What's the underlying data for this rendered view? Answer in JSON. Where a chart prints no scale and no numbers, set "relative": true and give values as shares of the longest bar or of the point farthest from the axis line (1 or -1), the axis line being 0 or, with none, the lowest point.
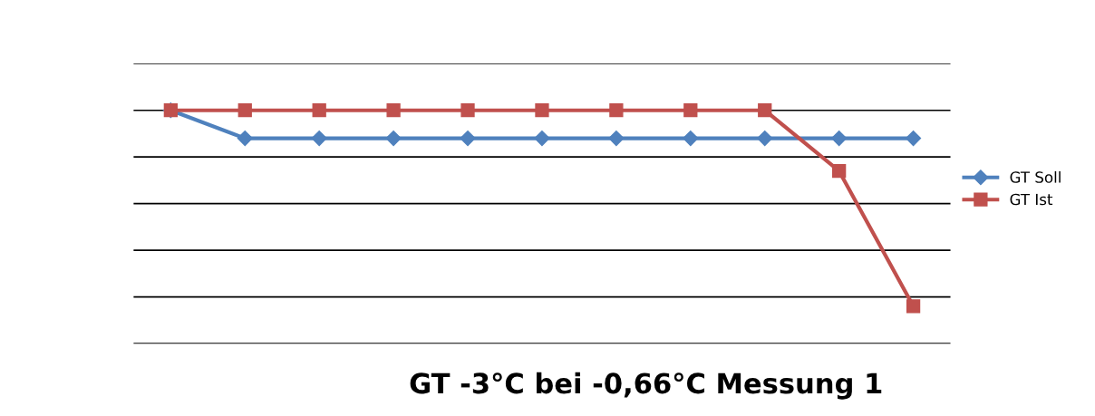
{
  "chart_data": {
    "type": "line",
    "title": "GT -3°C bei -0,66°C Messung 1",
    "relative": true,
    "categories": [
      null,
      null,
      null,
      null,
      null,
      null,
      null,
      null,
      null,
      null,
      null
    ],
    "series": [
      {
        "name": "GT Soll",
        "color": "#4f81bd",
        "marker": "diamond",
        "values": [
          1.0,
          0.88,
          0.88,
          0.88,
          0.88,
          0.88,
          0.88,
          0.88,
          0.88,
          0.88,
          0.88
        ]
      },
      {
        "name": "GT Ist",
        "color": "#c0504d",
        "marker": "square",
        "values": [
          1.0,
          1.0,
          1.0,
          1.0,
          1.0,
          1.0,
          1.0,
          1.0,
          1.0,
          0.74,
          0.16
        ]
      }
    ],
    "grid": "y",
    "legend": "right",
    "line_style": "solid"
  }
}
